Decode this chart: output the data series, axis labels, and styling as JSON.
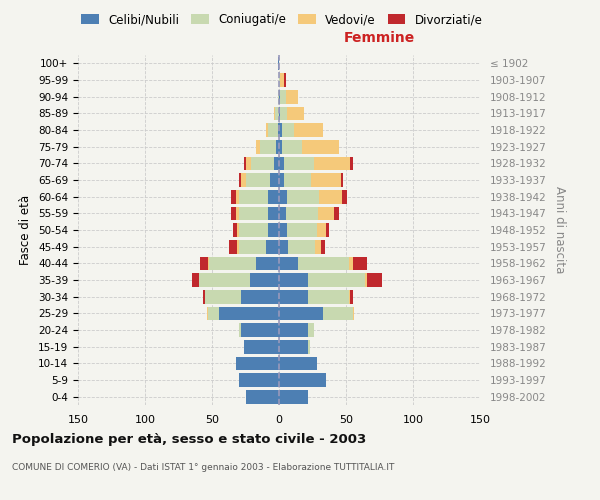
{
  "age_groups": [
    "0-4",
    "5-9",
    "10-14",
    "15-19",
    "20-24",
    "25-29",
    "30-34",
    "35-39",
    "40-44",
    "45-49",
    "50-54",
    "55-59",
    "60-64",
    "65-69",
    "70-74",
    "75-79",
    "80-84",
    "85-89",
    "90-94",
    "95-99",
    "100+"
  ],
  "birth_years": [
    "1998-2002",
    "1993-1997",
    "1988-1992",
    "1983-1987",
    "1978-1982",
    "1973-1977",
    "1968-1972",
    "1963-1967",
    "1958-1962",
    "1953-1957",
    "1948-1952",
    "1943-1947",
    "1938-1942",
    "1933-1937",
    "1928-1932",
    "1923-1927",
    "1918-1922",
    "1913-1917",
    "1908-1912",
    "1903-1907",
    "≤ 1902"
  ],
  "males_celibe": [
    25,
    30,
    32,
    26,
    28,
    45,
    28,
    22,
    17,
    10,
    8,
    8,
    8,
    7,
    4,
    2,
    1,
    0,
    0,
    0,
    1
  ],
  "males_coniugato": [
    0,
    0,
    0,
    0,
    2,
    8,
    27,
    38,
    35,
    20,
    22,
    22,
    22,
    18,
    17,
    12,
    7,
    3,
    1,
    0,
    0
  ],
  "males_vedovo": [
    0,
    0,
    0,
    0,
    0,
    1,
    0,
    0,
    1,
    1,
    1,
    2,
    2,
    3,
    4,
    3,
    2,
    1,
    0,
    0,
    0
  ],
  "males_divorziato": [
    0,
    0,
    0,
    0,
    0,
    0,
    2,
    5,
    6,
    6,
    3,
    4,
    4,
    2,
    1,
    0,
    0,
    0,
    0,
    0,
    0
  ],
  "females_nubile": [
    22,
    35,
    28,
    22,
    22,
    33,
    22,
    22,
    14,
    7,
    6,
    5,
    6,
    4,
    4,
    2,
    2,
    1,
    1,
    0,
    0
  ],
  "females_coniugata": [
    0,
    0,
    0,
    1,
    4,
    22,
    30,
    42,
    38,
    20,
    22,
    24,
    24,
    20,
    22,
    15,
    9,
    5,
    4,
    1,
    0
  ],
  "females_vedova": [
    0,
    0,
    0,
    0,
    0,
    1,
    1,
    2,
    3,
    4,
    7,
    12,
    17,
    22,
    27,
    28,
    22,
    13,
    9,
    3,
    0
  ],
  "females_divorziata": [
    0,
    0,
    0,
    0,
    0,
    0,
    2,
    11,
    11,
    3,
    2,
    4,
    4,
    2,
    2,
    0,
    0,
    0,
    0,
    1,
    0
  ],
  "color_celibe": "#4d7fb3",
  "color_coniugato": "#c8d9b0",
  "color_vedovo": "#f5c97a",
  "color_divorziato": "#c0282d",
  "bg_color": "#f4f4ef",
  "grid_color": "#cccccc",
  "title": "Popolazione per età, sesso e stato civile - 2003",
  "subtitle": "COMUNE DI COMERIO (VA) - Dati ISTAT 1° gennaio 2003 - Elaborazione TUTTITALIA.IT",
  "label_femmine": "Femmine",
  "ylabel_left": "Fasce di età",
  "ylabel_right": "Anni di nascita",
  "xlim": 150
}
